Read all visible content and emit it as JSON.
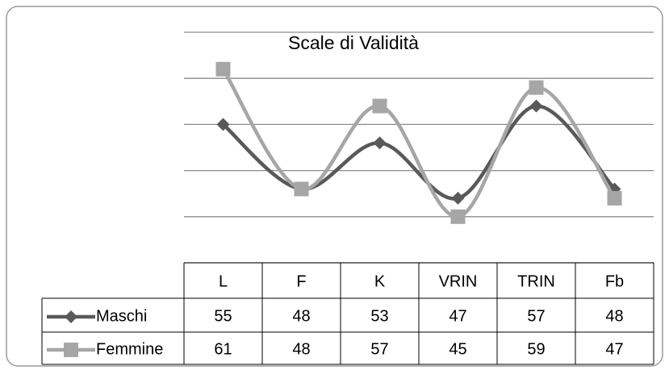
{
  "chart_data": {
    "type": "line",
    "title": "Scale di Validità",
    "categories": [
      "L",
      "F",
      "K",
      "VRIN",
      "TRIN",
      "Fb"
    ],
    "series": [
      {
        "name": "Maschi",
        "color": "#595959",
        "marker": "diamond",
        "values": [
          55,
          48,
          53,
          47,
          57,
          48
        ]
      },
      {
        "name": "Femmine",
        "color": "#a6a6a6",
        "marker": "square",
        "values": [
          61,
          48,
          57,
          45,
          59,
          47
        ]
      }
    ],
    "ylim": [
      40,
      65
    ],
    "yticks": [
      40,
      45,
      50,
      55,
      60,
      65
    ],
    "grid": true,
    "smooth": true,
    "data_table": true
  }
}
